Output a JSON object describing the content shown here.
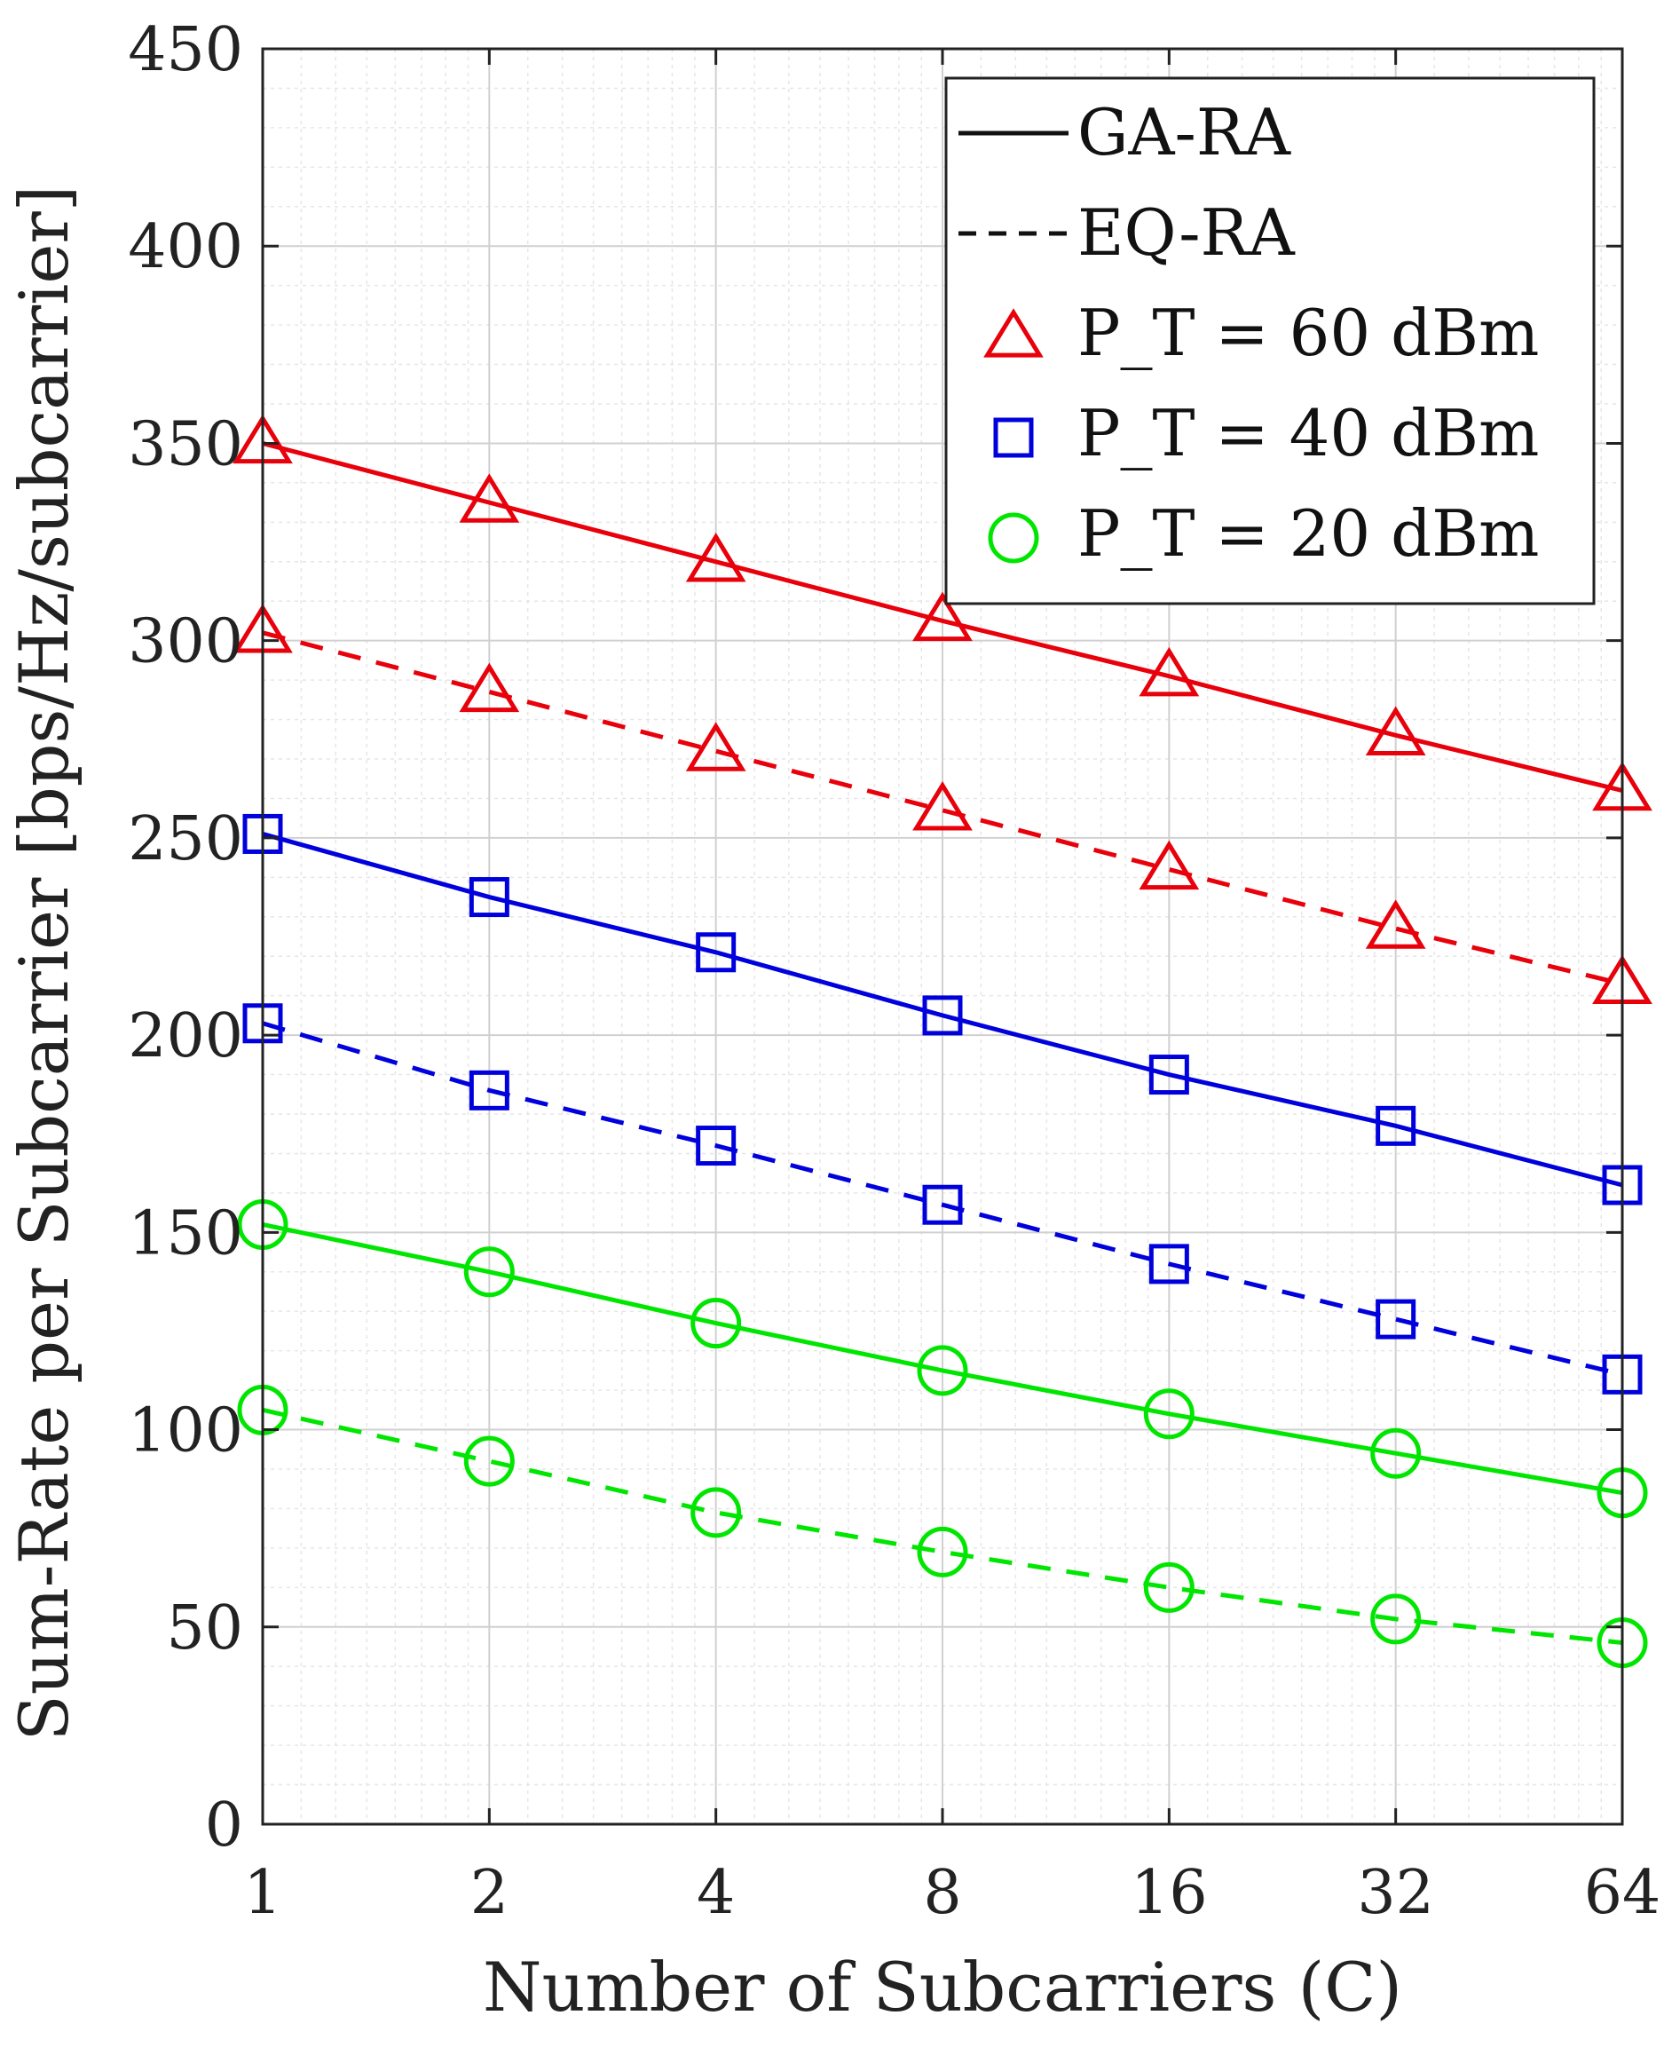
{
  "chart_data": {
    "type": "line",
    "title": "",
    "xlabel": "Number of Subcarriers (C)",
    "ylabel": "Sum-Rate per Subcarrier [bps/Hz/subcarrier]",
    "x_scale": "log2",
    "x": [
      1,
      2,
      4,
      8,
      16,
      32,
      64
    ],
    "x_tick_labels": [
      "1",
      "2",
      "4",
      "8",
      "16",
      "32",
      "64"
    ],
    "ylim": [
      0,
      450
    ],
    "y_ticks": [
      0,
      50,
      100,
      150,
      200,
      250,
      300,
      350,
      400,
      450
    ],
    "y_tick_labels": [
      "0",
      "50",
      "100",
      "150",
      "200",
      "250",
      "300",
      "350",
      "400",
      "450"
    ],
    "grid": true,
    "legend_position": "top-right",
    "legend": [
      {
        "label": "GA-RA",
        "kind": "line",
        "style": "solid"
      },
      {
        "label": "EQ-RA",
        "kind": "line",
        "style": "dashed"
      },
      {
        "label": "P_T = 60 dBm",
        "kind": "marker",
        "marker": "triangle",
        "color": "#e8000b"
      },
      {
        "label": "P_T = 40 dBm",
        "kind": "marker",
        "marker": "square",
        "color": "#0000dd"
      },
      {
        "label": "P_T = 20 dBm",
        "kind": "marker",
        "marker": "circle",
        "color": "#00e600"
      }
    ],
    "series": [
      {
        "name": "GA-RA, P_T = 60 dBm",
        "color": "#e8000b",
        "style": "solid",
        "marker": "triangle",
        "values": [
          350,
          335,
          320,
          305,
          291,
          276,
          262
        ]
      },
      {
        "name": "EQ-RA, P_T = 60 dBm",
        "color": "#e8000b",
        "style": "dashed",
        "marker": "triangle",
        "values": [
          302,
          287,
          272,
          257,
          242,
          227,
          213
        ]
      },
      {
        "name": "GA-RA, P_T = 40 dBm",
        "color": "#0000dd",
        "style": "solid",
        "marker": "square",
        "values": [
          251,
          235,
          221,
          205,
          190,
          177,
          162
        ]
      },
      {
        "name": "EQ-RA, P_T = 40 dBm",
        "color": "#0000dd",
        "style": "dashed",
        "marker": "square",
        "values": [
          203,
          186,
          172,
          157,
          142,
          128,
          114
        ]
      },
      {
        "name": "GA-RA, P_T = 20 dBm",
        "color": "#00e600",
        "style": "solid",
        "marker": "circle",
        "values": [
          152,
          140,
          127,
          115,
          104,
          94,
          84
        ]
      },
      {
        "name": "EQ-RA, P_T = 20 dBm",
        "color": "#00e600",
        "style": "dashed",
        "marker": "circle",
        "values": [
          105,
          92,
          79,
          69,
          60,
          52,
          46
        ]
      }
    ]
  }
}
